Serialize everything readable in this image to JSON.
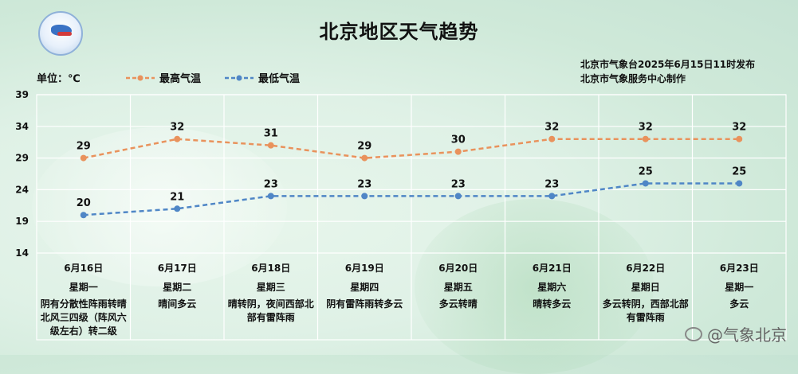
{
  "title": "北京地区天气趋势",
  "issuer": [
    "北京市气象台2025年6月15日11时发布",
    "北京市气象服务中心制作"
  ],
  "unit_label": "单位：℃",
  "watermark": "@气象北京",
  "colors": {
    "high": "#e9925c",
    "low": "#4f86c6",
    "grid": "#ffffff"
  },
  "chart_data": {
    "type": "line",
    "categories": [
      "6月16日",
      "6月17日",
      "6月18日",
      "6月19日",
      "6月20日",
      "6月21日",
      "6月22日",
      "6月23日"
    ],
    "weekdays": [
      "星期一",
      "星期二",
      "星期三",
      "星期四",
      "星期五",
      "星期六",
      "星期日",
      "星期一"
    ],
    "descriptions": [
      "阴有分散性阵雨转晴北风三四级（阵风六级左右）转二级",
      "晴间多云",
      "晴转阴，夜间西部北部有雷阵雨",
      "阴有雷阵雨转多云",
      "多云转晴",
      "晴转多云",
      "多云转阴，西部北部有雷阵雨",
      "多云"
    ],
    "series": [
      {
        "name": "最高气温",
        "values": [
          29,
          32,
          31,
          29,
          30,
          32,
          32,
          32
        ]
      },
      {
        "name": "最低气温",
        "values": [
          20,
          21,
          23,
          23,
          23,
          23,
          25,
          25
        ]
      }
    ],
    "yticks": [
      14,
      19,
      24,
      29,
      34,
      39
    ],
    "ylim": [
      14,
      39
    ],
    "grid": true,
    "legend": "top-left"
  }
}
